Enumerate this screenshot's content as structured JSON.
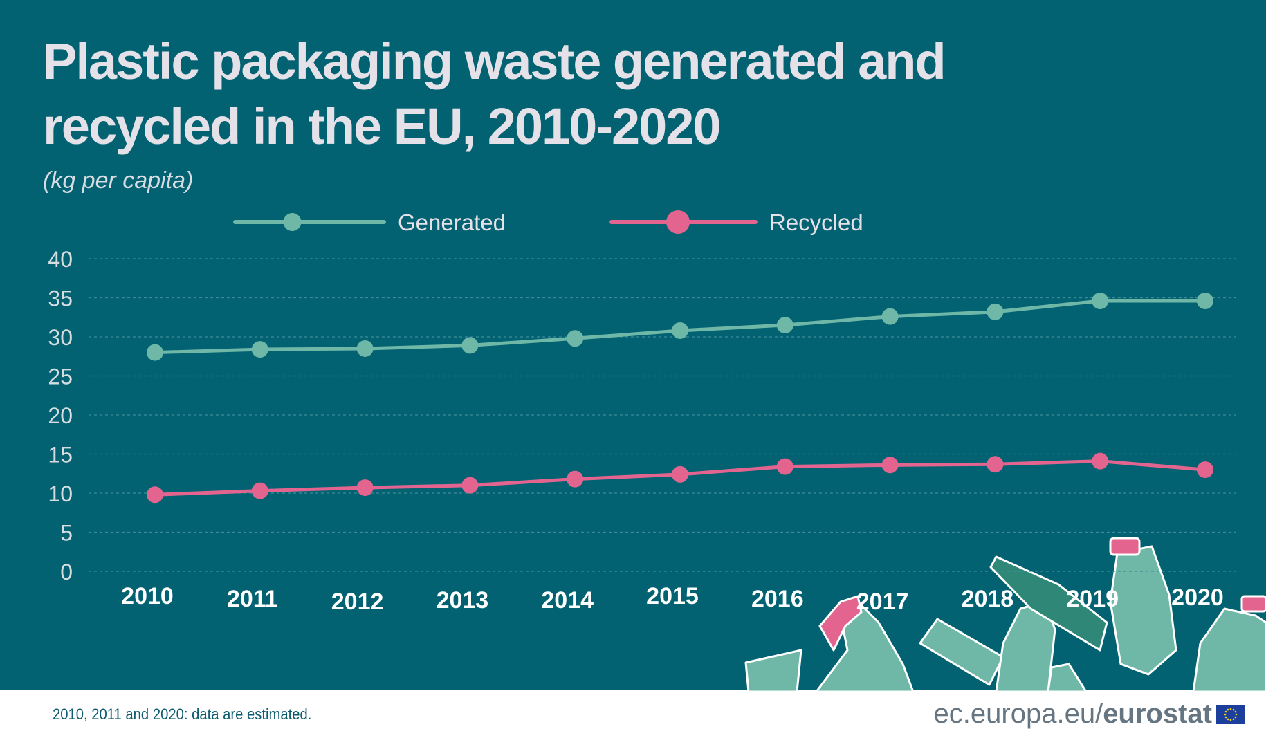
{
  "title": "Plastic packaging waste generated and recycled in the EU, 2010-2020",
  "subtitle": "(kg per capita)",
  "footer_note": "2010, 2011 and 2020: data are estimated.",
  "logo": {
    "url_text": "ec.europa.eu/",
    "brand_text": "eurostat"
  },
  "colors": {
    "background": "#036272",
    "generated": "#6fb8a8",
    "recycled": "#e3658f",
    "text": "#e4e1e8"
  },
  "chart_data": {
    "type": "line",
    "title": "Plastic packaging waste generated and recycled in the EU, 2010-2020",
    "ylabel": "(kg per capita)",
    "xlabel": "",
    "x": [
      "2010",
      "2011",
      "2012",
      "2013",
      "2014",
      "2015",
      "2016",
      "2017",
      "2018",
      "2019",
      "2020"
    ],
    "yticks": [
      0,
      5,
      10,
      15,
      20,
      25,
      30,
      35,
      40
    ],
    "ylim": [
      0,
      40
    ],
    "grid": true,
    "legend_position": "top",
    "series": [
      {
        "name": "Generated",
        "color": "#6fb8a8",
        "values": [
          28.0,
          28.4,
          28.5,
          28.9,
          29.8,
          30.8,
          31.5,
          32.6,
          33.2,
          34.6,
          34.6
        ]
      },
      {
        "name": "Recycled",
        "color": "#e3658f",
        "values": [
          9.8,
          10.3,
          10.7,
          11.0,
          11.8,
          12.4,
          13.4,
          13.6,
          13.7,
          14.1,
          13.0
        ]
      }
    ]
  }
}
